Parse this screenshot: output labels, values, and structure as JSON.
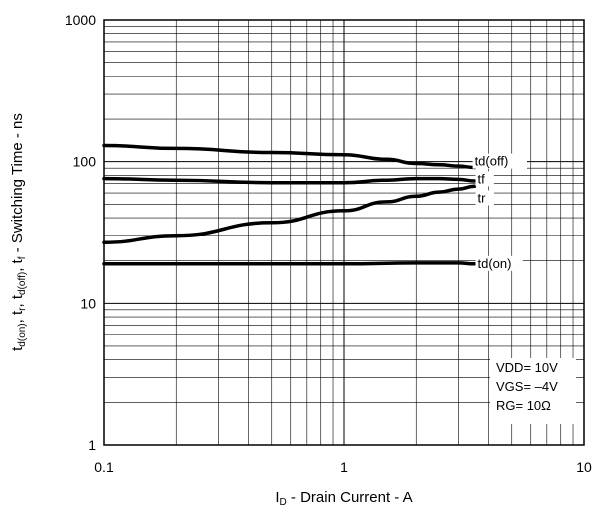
{
  "chart_data": {
    "type": "line",
    "xscale": "log",
    "yscale": "log",
    "xlim": [
      0.1,
      10
    ],
    "ylim": [
      1,
      1000
    ],
    "grid": true,
    "x_ticks": [
      "0.1",
      "1",
      "10"
    ],
    "y_ticks": [
      "1",
      "10",
      "100",
      "1000"
    ],
    "xlabel": {
      "main": "I",
      "sub": "D",
      "rest": " - Drain Current - A"
    },
    "ylabel": {
      "parts": [
        {
          "t": "t"
        },
        {
          "t": "d(on)",
          "sub": true
        },
        {
          "t": ", t"
        },
        {
          "t": "r",
          "sub": true
        },
        {
          "t": ", t"
        },
        {
          "t": "d(off)",
          "sub": true
        },
        {
          "t": ", t"
        },
        {
          "t": "f",
          "sub": true
        },
        {
          "t": " - Switching Time - ns"
        }
      ]
    },
    "series": [
      {
        "name": "td(off)",
        "label_at": [
          3.5,
          100
        ],
        "x": [
          0.1,
          0.2,
          0.5,
          1,
          1.5,
          2,
          2.5,
          3,
          3.5
        ],
        "y": [
          130,
          124,
          116,
          112,
          104,
          97,
          95,
          93,
          91
        ]
      },
      {
        "name": "tf",
        "label_at": [
          3.6,
          75
        ],
        "x": [
          0.1,
          0.2,
          0.5,
          1,
          1.5,
          2,
          2.5,
          3,
          3.5
        ],
        "y": [
          76,
          74,
          71,
          71,
          74,
          76,
          76,
          75,
          73
        ]
      },
      {
        "name": "tr",
        "label_at": [
          3.6,
          55
        ],
        "x": [
          0.1,
          0.2,
          0.5,
          1,
          1.5,
          2,
          2.5,
          3,
          3.5
        ],
        "y": [
          27,
          30,
          37,
          45,
          52,
          57,
          61,
          64,
          67
        ]
      },
      {
        "name": "td(on)",
        "label_at": [
          3.6,
          19
        ],
        "x": [
          0.1,
          0.5,
          1,
          2,
          3,
          3.5
        ],
        "y": [
          19,
          19,
          19,
          19.3,
          19.3,
          19
        ]
      }
    ],
    "annotations": [
      "VDD= 10V",
      "VGS= –4V",
      "RG= 10Ω"
    ]
  }
}
